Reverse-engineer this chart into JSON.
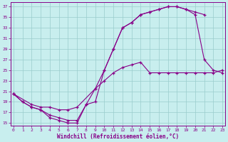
{
  "xlabel": "Windchill (Refroidissement éolien,°C)",
  "bg_color": "#c8eeee",
  "line_color": "#880088",
  "grid_color": "#99cccc",
  "xlim_min": -0.3,
  "xlim_max": 23.3,
  "ylim_min": 14.5,
  "ylim_max": 37.8,
  "yticks": [
    15,
    17,
    19,
    21,
    23,
    25,
    27,
    29,
    31,
    33,
    35,
    37
  ],
  "xticks": [
    0,
    1,
    2,
    3,
    4,
    5,
    6,
    7,
    8,
    9,
    10,
    11,
    12,
    13,
    14,
    15,
    16,
    17,
    18,
    19,
    20,
    21,
    22,
    23
  ],
  "curve1_x": [
    0,
    1,
    2,
    3,
    4,
    5,
    6,
    7,
    8,
    9,
    10,
    11,
    12,
    13,
    14,
    15,
    16,
    17,
    18,
    19,
    20,
    21,
    22,
    23
  ],
  "curve1_y": [
    20.5,
    19,
    18,
    17.5,
    16,
    15.5,
    15,
    15,
    18.5,
    21.5,
    25,
    29,
    33,
    34,
    35.5,
    36,
    36.5,
    37,
    37,
    36.5,
    35.5,
    27,
    25,
    24.5
  ],
  "curve2_x": [
    0,
    1,
    2,
    3,
    4,
    5,
    6,
    7,
    8,
    9,
    10,
    11,
    12,
    13,
    14,
    15,
    16,
    17,
    18,
    19,
    20,
    21
  ],
  "curve2_y": [
    20.5,
    19,
    18,
    17.5,
    16.5,
    16,
    15.5,
    15.5,
    18.5,
    19,
    25,
    29,
    33,
    34,
    35.5,
    36,
    36.5,
    37,
    37,
    36.5,
    36,
    35.5
  ],
  "curve3_x": [
    0,
    2,
    3,
    4,
    5,
    6,
    7,
    9,
    10,
    11,
    12,
    13,
    14,
    15,
    16,
    17,
    18,
    19,
    20,
    21,
    22,
    23
  ],
  "curve3_y": [
    20.5,
    18.5,
    18,
    18,
    17.5,
    17.5,
    18,
    21.5,
    23,
    24.5,
    25.5,
    26,
    26.5,
    24.5,
    24.5,
    24.5,
    24.5,
    24.5,
    24.5,
    24.5,
    24.5,
    25
  ]
}
